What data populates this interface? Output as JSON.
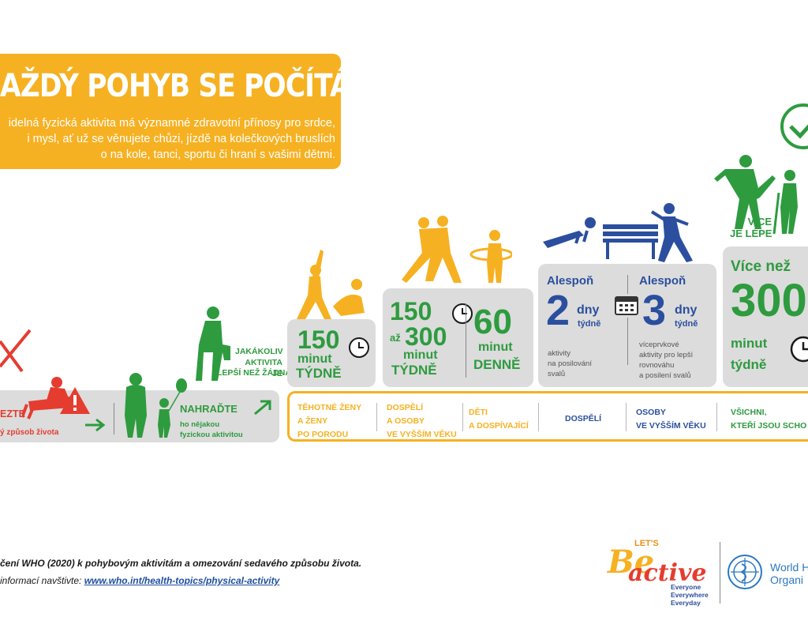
{
  "header": {
    "title": "AŽDÝ POHYB SE POČÍTÁ",
    "lines": [
      "idelná fyzická aktivita má významné zdravotní přínosy pro srdce,",
      "i mysl, ať už se věnujete chůzi, jízdě na kolečkových bruslích",
      "o na kole, tanci, sportu či hraní s vašimi dětmi."
    ]
  },
  "step_reduce": {
    "label": "EZTE",
    "sub": "ý způsob života"
  },
  "step_replace": {
    "label": "NAHRAĎTE",
    "sub_line1": "ho nějakou",
    "sub_line2": "fyzickou aktivitou"
  },
  "step_any": {
    "line1": "JAKÁKOLIV",
    "line2": "AKTIVITA JE",
    "line3": "LEPŠÍ NEŽ ŽÁDNÁ"
  },
  "col_pregnant": {
    "number": "150",
    "unit": "minut",
    "period": "TÝDNĚ"
  },
  "col_adults": {
    "from": "150",
    "to_word": "až",
    "to": "300",
    "unit": "minut",
    "period": "TÝDNĚ"
  },
  "col_kids": {
    "number": "60",
    "unit": "minut",
    "period": "DENNĚ"
  },
  "col_strength": {
    "prefix": "Alespoň",
    "number": "2",
    "unit": "dny",
    "period": "týdně",
    "desc": [
      "aktivity",
      "na posilování",
      "svalů"
    ]
  },
  "col_balance": {
    "prefix": "Alespoň",
    "number": "3",
    "unit": "dny",
    "period": "týdně",
    "desc": [
      "víceprvkové",
      "aktivity pro lepší",
      "rovnováhu",
      "a posilení svalů"
    ]
  },
  "col_more": {
    "prefix": "Více než",
    "number": "300",
    "unit": "minut",
    "period": "týdně"
  },
  "more_is_better": {
    "line1": "VÍCE",
    "line2": "JE LÉPE"
  },
  "groups": [
    {
      "line1": "TĚHOTNÉ ŽENY",
      "line2": "A ŽENY",
      "line3": "PO PORODU"
    },
    {
      "line1": "DOSPĚLÍ",
      "line2": "A OSOBY",
      "line3": "VE VYŠŠÍM VĚKU"
    },
    {
      "line1": "DĚTI",
      "line2": "A DOSPÍVAJÍCÍ"
    },
    {
      "line1": "DOSPĚLÍ"
    },
    {
      "line1": "OSOBY",
      "line2": "VE VYŠŠÍM VĚKU"
    },
    {
      "line1": "VŠICHNI,",
      "line2": "KTEŘÍ JSOU SCHO"
    }
  ],
  "footer": {
    "line1": "čení WHO (2020) k pohybovým aktivitám a omezování sedavého způsobu života.",
    "line2_prefix": "informací navštivte: ",
    "link": "www.who.int/health-topics/physical-activity"
  },
  "logos": {
    "lets": "LET'S",
    "be": "Be",
    "active": "active",
    "tag1": "Everyone",
    "tag2": "Everywhere",
    "tag3": "Everyday",
    "who1": "World H",
    "who2": "Organi"
  },
  "colors": {
    "green": "#2e9b3f",
    "yellow": "#f6b122",
    "red": "#e43d30",
    "blue": "#2b4f9e",
    "grey": "#dcdcdc"
  }
}
